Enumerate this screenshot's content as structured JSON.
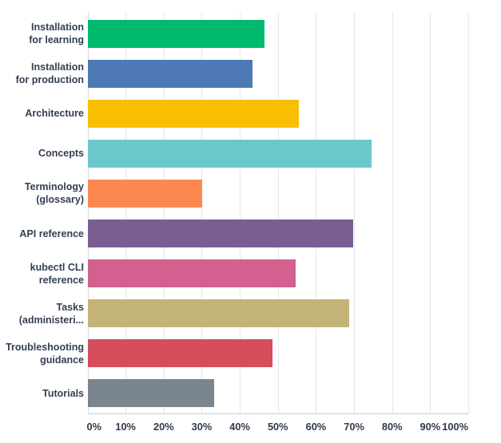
{
  "chart_data": {
    "type": "bar",
    "orientation": "horizontal",
    "title": "",
    "xlabel": "",
    "ylabel": "",
    "unit": "%",
    "categories": [
      "Installation for learning",
      "Installation for production",
      "Architecture",
      "Concepts",
      "Terminology (glossary)",
      "API reference",
      "kubectl CLI reference",
      "Tasks (administeri...",
      "Troubleshooting guidance",
      "Tutorials"
    ],
    "category_label_lines": [
      [
        "Installation",
        "for learning"
      ],
      [
        "Installation",
        "for production"
      ],
      [
        "Architecture"
      ],
      [
        "Concepts"
      ],
      [
        "Terminology",
        "(glossary)"
      ],
      [
        "API reference"
      ],
      [
        "kubectl CLI",
        "reference"
      ],
      [
        "Tasks",
        "(administeri..."
      ],
      [
        "Troubleshooting",
        "guidance"
      ],
      [
        "Tutorials"
      ]
    ],
    "values": [
      46.3,
      43.3,
      55.5,
      74.6,
      30.1,
      69.6,
      54.5,
      68.6,
      48.4,
      33.1
    ],
    "bar_colors": [
      "#00BA6E",
      "#4D7AB5",
      "#F7BF00",
      "#6AC8CA",
      "#FB8850",
      "#7A5E92",
      "#D2618F",
      "#C4B377",
      "#D64D5C",
      "#7A858D"
    ],
    "x_ticks": [
      "0%",
      "10%",
      "20%",
      "30%",
      "40%",
      "50%",
      "60%",
      "70%",
      "80%",
      "90%",
      "100%"
    ],
    "xlim": [
      0,
      100
    ],
    "grid": "vertical",
    "legend_position": "none"
  },
  "styles": {
    "background": "#FFFFFF",
    "grid_color": "#E6E7E9",
    "axis_color": "#C7CCD1",
    "label_color": "#333F52",
    "tick_label_color": "#2F3B4E"
  }
}
